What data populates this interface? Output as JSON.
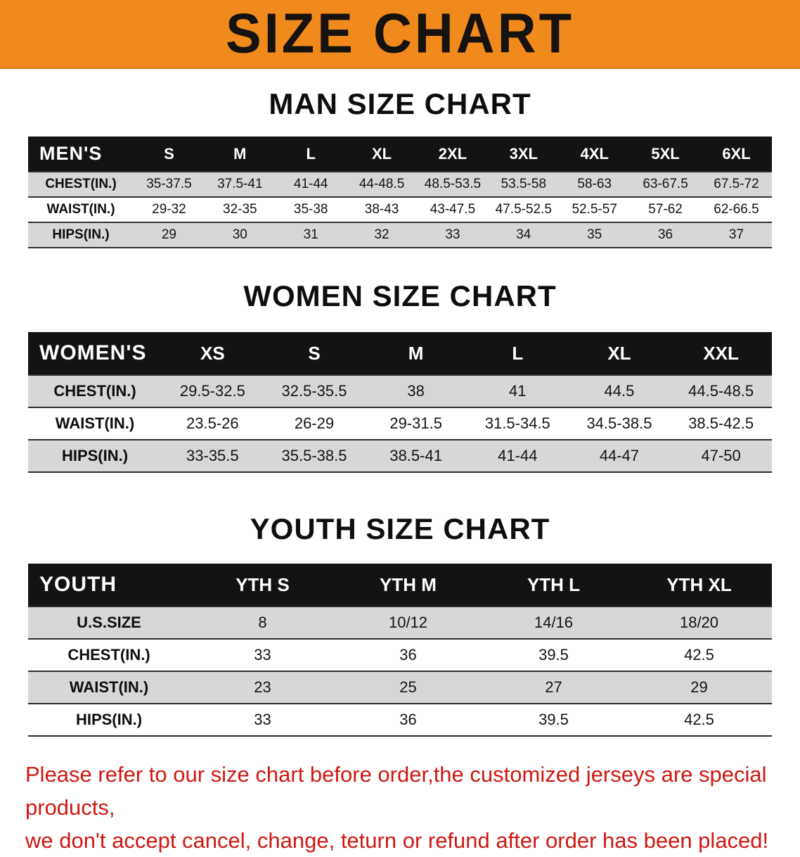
{
  "banner": {
    "title": "SIZE CHART"
  },
  "chart_data": [
    {
      "type": "table",
      "title": "MAN SIZE CHART",
      "corner_label": "MEN'S",
      "columns": [
        "S",
        "M",
        "L",
        "XL",
        "2XL",
        "3XL",
        "4XL",
        "5XL",
        "6XL"
      ],
      "rows": [
        {
          "label": "CHEST(IN.)",
          "values": [
            "35-37.5",
            "37.5-41",
            "41-44",
            "44-48.5",
            "48.5-53.5",
            "53.5-58",
            "58-63",
            "63-67.5",
            "67.5-72"
          ]
        },
        {
          "label": "WAIST(IN.)",
          "values": [
            "29-32",
            "32-35",
            "35-38",
            "38-43",
            "43-47.5",
            "47.5-52.5",
            "52.5-57",
            "57-62",
            "62-66.5"
          ]
        },
        {
          "label": "HIPS(IN.)",
          "values": [
            "29",
            "30",
            "31",
            "32",
            "33",
            "34",
            "35",
            "36",
            "37"
          ]
        }
      ]
    },
    {
      "type": "table",
      "title": "WOMEN SIZE CHART",
      "corner_label": "WOMEN'S",
      "columns": [
        "XS",
        "S",
        "M",
        "L",
        "XL",
        "XXL"
      ],
      "rows": [
        {
          "label": "CHEST(IN.)",
          "values": [
            "29.5-32.5",
            "32.5-35.5",
            "38",
            "41",
            "44.5",
            "44.5-48.5"
          ]
        },
        {
          "label": "WAIST(IN.)",
          "values": [
            "23.5-26",
            "26-29",
            "29-31.5",
            "31.5-34.5",
            "34.5-38.5",
            "38.5-42.5"
          ]
        },
        {
          "label": "HIPS(IN.)",
          "values": [
            "33-35.5",
            "35.5-38.5",
            "38.5-41",
            "41-44",
            "44-47",
            "47-50"
          ]
        }
      ]
    },
    {
      "type": "table",
      "title": "YOUTH SIZE CHART",
      "corner_label": "YOUTH",
      "columns": [
        "YTH S",
        "YTH M",
        "YTH L",
        "YTH XL"
      ],
      "rows": [
        {
          "label": "U.S.SIZE",
          "values": [
            "8",
            "10/12",
            "14/16",
            "18/20"
          ]
        },
        {
          "label": "CHEST(IN.)",
          "values": [
            "33",
            "36",
            "39.5",
            "42.5"
          ]
        },
        {
          "label": "WAIST(IN.)",
          "values": [
            "23",
            "25",
            "27",
            "29"
          ]
        },
        {
          "label": "HIPS(IN.)",
          "values": [
            "33",
            "36",
            "39.5",
            "42.5"
          ]
        }
      ]
    }
  ],
  "footer": {
    "line1": "Please refer to our size chart before order,the customized jerseys are special products,",
    "line2": "we don't accept cancel, change, teturn or refund after order has been placed!"
  },
  "colors": {
    "banner_bg": "#f18a1d",
    "table_header_bg": "#131313",
    "row_stripe": "#d7d7d7",
    "footer_text": "#ce1812"
  }
}
